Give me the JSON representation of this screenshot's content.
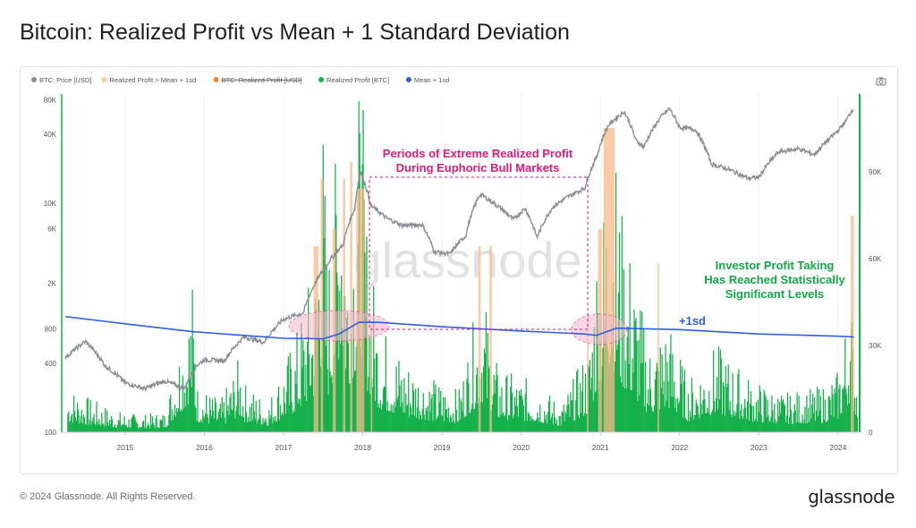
{
  "title": "Bitcoin: Realized Profit vs Mean + 1 Standard Deviation",
  "footer": "© 2024 Glassnode. All Rights Reserved.",
  "brand": "glassnode",
  "watermark": "glassnode",
  "colors": {
    "price": "#8a8e92",
    "profit": "#14b04a",
    "excess": "#f8b98a",
    "mean_sd": "#2f5fe0",
    "annotation_pink": "#e0197a",
    "annotation_green": "#13a847",
    "ellipse_fill": "#f3b8cc"
  },
  "chart_data": {
    "type": "line",
    "legend_position": "top-left",
    "legend": [
      {
        "label": "BTC: Price [USD]",
        "color": "#8a8e92",
        "hidden": false
      },
      {
        "label": "Realized Profit > Mean + 1sd",
        "color": "#f8c9a0",
        "hidden": false
      },
      {
        "label": "BTC: Realized Profit [USD]",
        "color": "#f08a30",
        "hidden": true
      },
      {
        "label": "Realized Profit [BTC]",
        "color": "#14b04a",
        "hidden": false
      },
      {
        "label": "Mean + 1sd",
        "color": "#2f5fe0",
        "hidden": false
      }
    ],
    "x_ticks": [
      "2015",
      "2016",
      "2017",
      "2018",
      "2019",
      "2020",
      "2021",
      "2022",
      "2023",
      "2024"
    ],
    "x_range": [
      2014.2,
      2024.25
    ],
    "y_left": {
      "scale": "log",
      "ticks": [
        {
          "v": 100,
          "label": "100"
        },
        {
          "v": 400,
          "label": "400"
        },
        {
          "v": 800,
          "label": "800"
        },
        {
          "v": 2000,
          "label": "2K"
        },
        {
          "v": 6000,
          "label": "6K"
        },
        {
          "v": 10000,
          "label": "10K"
        },
        {
          "v": 40000,
          "label": "40K"
        },
        {
          "v": 80000,
          "label": "80K"
        }
      ],
      "range": [
        100,
        90000
      ]
    },
    "y_right": {
      "scale": "linear",
      "ticks": [
        {
          "v": 0,
          "label": "0"
        },
        {
          "v": 30000,
          "label": "30K"
        },
        {
          "v": 60000,
          "label": "60K"
        },
        {
          "v": 90000,
          "label": "90K"
        }
      ],
      "range": [
        0,
        117000
      ]
    },
    "series": [
      {
        "name": "BTC: Price [USD]",
        "axis": "left",
        "points": [
          [
            2014.25,
            450
          ],
          [
            2014.5,
            620
          ],
          [
            2014.75,
            380
          ],
          [
            2015.0,
            270
          ],
          [
            2015.25,
            240
          ],
          [
            2015.5,
            280
          ],
          [
            2015.75,
            240
          ],
          [
            2015.9,
            380
          ],
          [
            2016.0,
            430
          ],
          [
            2016.25,
            420
          ],
          [
            2016.5,
            680
          ],
          [
            2016.75,
            610
          ],
          [
            2017.0,
            970
          ],
          [
            2017.25,
            1100
          ],
          [
            2017.5,
            2600
          ],
          [
            2017.75,
            4300
          ],
          [
            2017.9,
            9000
          ],
          [
            2017.97,
            19000
          ],
          [
            2018.1,
            9500
          ],
          [
            2018.3,
            7400
          ],
          [
            2018.5,
            6400
          ],
          [
            2018.75,
            6500
          ],
          [
            2018.9,
            3800
          ],
          [
            2019.1,
            3600
          ],
          [
            2019.3,
            5200
          ],
          [
            2019.48,
            12000
          ],
          [
            2019.7,
            9500
          ],
          [
            2019.9,
            7200
          ],
          [
            2020.05,
            9000
          ],
          [
            2020.2,
            5000
          ],
          [
            2020.4,
            9300
          ],
          [
            2020.6,
            11500
          ],
          [
            2020.8,
            13500
          ],
          [
            2020.95,
            25000
          ],
          [
            2021.1,
            48000
          ],
          [
            2021.3,
            63000
          ],
          [
            2021.45,
            35000
          ],
          [
            2021.55,
            31000
          ],
          [
            2021.75,
            55000
          ],
          [
            2021.87,
            67000
          ],
          [
            2022.0,
            46000
          ],
          [
            2022.2,
            44000
          ],
          [
            2022.4,
            22000
          ],
          [
            2022.6,
            20000
          ],
          [
            2022.86,
            16500
          ],
          [
            2023.0,
            16800
          ],
          [
            2023.25,
            28000
          ],
          [
            2023.5,
            30000
          ],
          [
            2023.7,
            26500
          ],
          [
            2023.9,
            37000
          ],
          [
            2024.0,
            43000
          ],
          [
            2024.1,
            52000
          ],
          [
            2024.2,
            69000
          ]
        ]
      },
      {
        "name": "Mean + 1sd",
        "axis": "right",
        "points": [
          [
            2014.25,
            40000
          ],
          [
            2015.0,
            37500
          ],
          [
            2015.85,
            34800
          ],
          [
            2016.5,
            33500
          ],
          [
            2017.0,
            32500
          ],
          [
            2017.5,
            32300
          ],
          [
            2017.7,
            34000
          ],
          [
            2017.95,
            38000
          ],
          [
            2018.2,
            38000
          ],
          [
            2019.0,
            36500
          ],
          [
            2020.0,
            35000
          ],
          [
            2020.8,
            34000
          ],
          [
            2020.95,
            33500
          ],
          [
            2021.2,
            36000
          ],
          [
            2022.0,
            35500
          ],
          [
            2023.0,
            34000
          ],
          [
            2024.0,
            33200
          ],
          [
            2024.2,
            33000
          ]
        ]
      },
      {
        "name": "Realized Profit [BTC]",
        "axis": "right",
        "points": [
          [
            2014.3,
            13000
          ],
          [
            2014.6,
            9000
          ],
          [
            2014.9,
            6000
          ],
          [
            2015.2,
            5000
          ],
          [
            2015.5,
            6000
          ],
          [
            2015.85,
            45000
          ],
          [
            2015.9,
            14000
          ],
          [
            2016.2,
            9000
          ],
          [
            2016.45,
            22000
          ],
          [
            2016.5,
            14000
          ],
          [
            2016.8,
            9000
          ],
          [
            2017.0,
            20000
          ],
          [
            2017.15,
            28000
          ],
          [
            2017.3,
            42000
          ],
          [
            2017.4,
            50000
          ],
          [
            2017.48,
            100000
          ],
          [
            2017.55,
            48000
          ],
          [
            2017.65,
            78000
          ],
          [
            2017.72,
            115000
          ],
          [
            2017.8,
            60000
          ],
          [
            2017.92,
            88000
          ],
          [
            2017.97,
            108000
          ],
          [
            2018.05,
            58000
          ],
          [
            2018.2,
            32000
          ],
          [
            2018.5,
            22000
          ],
          [
            2018.9,
            15000
          ],
          [
            2019.2,
            12000
          ],
          [
            2019.5,
            42000
          ],
          [
            2019.7,
            18000
          ],
          [
            2020.2,
            14000
          ],
          [
            2020.5,
            8000
          ],
          [
            2020.85,
            25000
          ],
          [
            2020.95,
            58000
          ],
          [
            2021.05,
            70000
          ],
          [
            2021.12,
            95000
          ],
          [
            2021.25,
            64000
          ],
          [
            2021.4,
            50000
          ],
          [
            2021.6,
            25000
          ],
          [
            2021.85,
            33000
          ],
          [
            2022.1,
            15000
          ],
          [
            2022.45,
            25000
          ],
          [
            2022.9,
            15000
          ],
          [
            2023.3,
            11000
          ],
          [
            2023.8,
            13000
          ],
          [
            2024.0,
            18000
          ],
          [
            2024.15,
            42000
          ],
          [
            2024.22,
            20000
          ]
        ]
      }
    ],
    "annotations": {
      "extreme_title_1": "Periods of Extreme Realized Profit",
      "extreme_title_2": "During Euphoric Bull Markets",
      "investor_1": "Investor Profit Taking",
      "investor_2": "Has Reached Statistically",
      "investor_3": "Significant Levels",
      "sd_label": "+1sd"
    }
  }
}
